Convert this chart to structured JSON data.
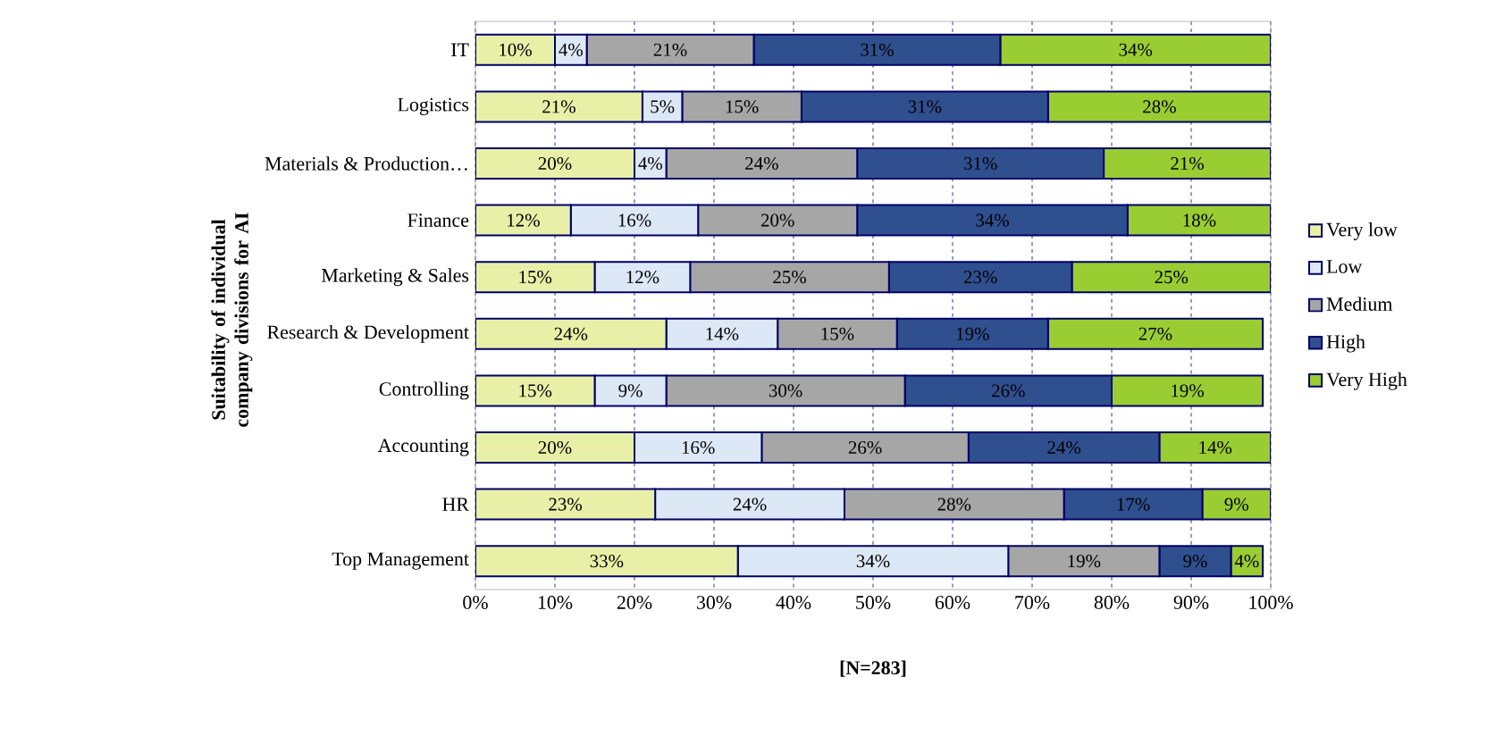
{
  "chart_data": {
    "type": "bar",
    "orientation": "horizontal",
    "stacked": true,
    "categories": [
      "IT",
      "Logistics",
      "Materials & Production…",
      "Finance",
      "Marketing & Sales",
      "Research & Development",
      "Controlling",
      "Accounting",
      "HR",
      "Top Management"
    ],
    "series": [
      {
        "name": "Very low",
        "color": "#e8f0a8",
        "values": [
          10,
          21,
          20,
          12,
          15,
          24,
          15,
          20,
          22.6,
          33
        ],
        "value_labels": [
          "10%",
          "21%",
          "20%",
          "12%",
          "15%",
          "24%",
          "15%",
          "20%",
          "23%",
          "33%"
        ]
      },
      {
        "name": "Low",
        "color": "#dde8f6",
        "values": [
          4,
          5,
          4,
          16,
          12,
          14,
          9,
          16,
          23.8,
          34
        ],
        "value_labels": [
          "4%",
          "5%",
          "4%",
          "16%",
          "12%",
          "14%",
          "9%",
          "16%",
          "24%",
          "34%"
        ]
      },
      {
        "name": "Medium",
        "color": "#a6a6a6",
        "values": [
          21,
          15,
          24,
          20,
          25,
          15,
          30,
          26,
          27.6,
          19
        ],
        "value_labels": [
          "21%",
          "15%",
          "24%",
          "20%",
          "25%",
          "15%",
          "30%",
          "26%",
          "28%",
          "19%"
        ]
      },
      {
        "name": "High",
        "color": "#2f4f8f",
        "values": [
          31,
          31,
          31,
          34,
          23,
          19,
          26,
          24,
          17.4,
          9
        ],
        "value_labels": [
          "31%",
          "31%",
          "31%",
          "34%",
          "23%",
          "19%",
          "26%",
          "24%",
          "17%",
          "9%"
        ]
      },
      {
        "name": "Very High",
        "color": "#9acd32",
        "values": [
          34,
          28,
          21,
          18,
          25,
          27,
          19,
          14,
          8.6,
          4
        ],
        "value_labels": [
          "34%",
          "28%",
          "21%",
          "18%",
          "25%",
          "27%",
          "19%",
          "14%",
          "9%",
          "4%"
        ]
      }
    ],
    "xlim": [
      0,
      100
    ],
    "xticks": [
      {
        "value": 0,
        "label": "0%"
      },
      {
        "value": 10,
        "label": "10%"
      },
      {
        "value": 20,
        "label": "20%"
      },
      {
        "value": 30,
        "label": "30%"
      },
      {
        "value": 40,
        "label": "40%"
      },
      {
        "value": 50,
        "label": "50%"
      },
      {
        "value": 60,
        "label": "60%"
      },
      {
        "value": 70,
        "label": "70%"
      },
      {
        "value": 80,
        "label": "80%"
      },
      {
        "value": 90,
        "label": "90%"
      },
      {
        "value": 100,
        "label": "100%"
      }
    ],
    "xlabel": "[N=283]",
    "ylabel": "Suitability of individual company divisions for AI",
    "grid": "x",
    "legend": "right"
  }
}
